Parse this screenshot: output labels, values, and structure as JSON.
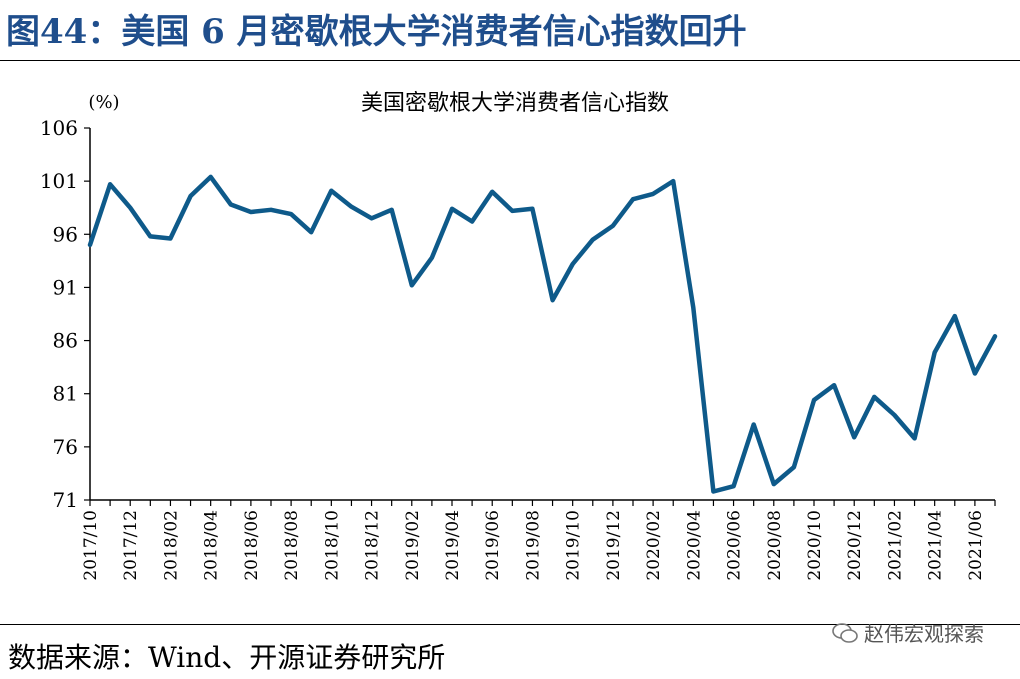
{
  "figure_title": "图44：美国 6 月密歇根大学消费者信心指数回升",
  "source": "数据来源：Wind、开源证券研究所",
  "watermark": "赵伟宏观探索",
  "chart_data": {
    "type": "line",
    "title": "美国密歇根大学消费者信心指数",
    "ylabel": "(%)",
    "xlabel": "",
    "ylim": [
      71,
      106
    ],
    "yticks": [
      71,
      76,
      81,
      86,
      91,
      96,
      101,
      106
    ],
    "grid": false,
    "legend": "none",
    "color": "#0e5a8a",
    "x": [
      "2017/10",
      "2017/11",
      "2017/12",
      "2018/01",
      "2018/02",
      "2018/03",
      "2018/04",
      "2018/05",
      "2018/06",
      "2018/07",
      "2018/08",
      "2018/09",
      "2018/10",
      "2018/11",
      "2018/12",
      "2019/01",
      "2019/02",
      "2019/03",
      "2019/04",
      "2019/05",
      "2019/06",
      "2019/07",
      "2019/08",
      "2019/09",
      "2019/10",
      "2019/11",
      "2019/12",
      "2020/01",
      "2020/02",
      "2020/03",
      "2020/04",
      "2020/05",
      "2020/06",
      "2020/07",
      "2020/08",
      "2020/09",
      "2020/10",
      "2020/11",
      "2020/12",
      "2021/01",
      "2021/02",
      "2021/03",
      "2021/04",
      "2021/05",
      "2021/06",
      "2021/07"
    ],
    "xtick_labels": [
      "2017/10",
      "2017/12",
      "2018/02",
      "2018/04",
      "2018/06",
      "2018/08",
      "2018/10",
      "2018/12",
      "2019/02",
      "2019/04",
      "2019/06",
      "2019/08",
      "2019/10",
      "2019/12",
      "2020/02",
      "2020/04",
      "2020/06",
      "2020/08",
      "2020/10",
      "2020/12",
      "2021/02",
      "2021/04",
      "2021/06"
    ],
    "series": [
      {
        "values": [
          95.0,
          100.7,
          98.5,
          95.8,
          95.6,
          99.6,
          101.4,
          98.8,
          98.1,
          98.3,
          97.9,
          96.2,
          100.1,
          98.6,
          97.5,
          98.3,
          91.2,
          93.8,
          98.4,
          97.2,
          100.0,
          98.2,
          98.4,
          89.8,
          93.2,
          95.5,
          96.8,
          99.3,
          99.8,
          101.0,
          89.1,
          71.8,
          72.3,
          78.1,
          72.5,
          74.1,
          80.4,
          81.8,
          76.9,
          80.7,
          79.0,
          76.8,
          84.9,
          88.3,
          82.9,
          86.4
        ]
      }
    ]
  }
}
